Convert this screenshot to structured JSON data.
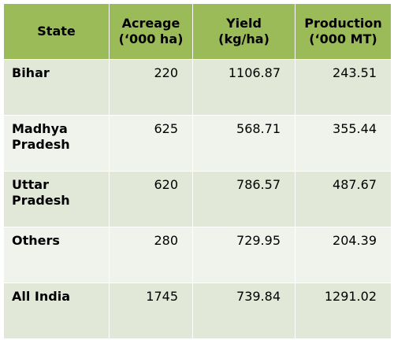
{
  "table": {
    "headers": {
      "state": "State",
      "acreage_line1": "Acreage",
      "acreage_line2": "(‘000 ha)",
      "yield_line1": "Yield",
      "yield_line2": "(kg/ha)",
      "production_line1": "Production",
      "production_line2": "(‘000 MT)"
    },
    "rows": [
      {
        "state_line1": "Bihar",
        "state_line2": "",
        "acreage": "220",
        "yield": "1106.87",
        "production": "243.51"
      },
      {
        "state_line1": "Madhya",
        "state_line2": "Pradesh",
        "acreage": "625",
        "yield": "568.71",
        "production": "355.44"
      },
      {
        "state_line1": "Uttar",
        "state_line2": "Pradesh",
        "acreage": "620",
        "yield": "786.57",
        "production": "487.67"
      },
      {
        "state_line1": "Others",
        "state_line2": "",
        "acreage": "280",
        "yield": "729.95",
        "production": "204.39"
      },
      {
        "state_line1": "All India",
        "state_line2": "",
        "acreage": "1745",
        "yield": "739.84",
        "production": "1291.02"
      }
    ]
  },
  "colors": {
    "header_bg": "#9bbb59",
    "row_odd_bg": "#e2e8d8",
    "row_even_bg": "#f0f3ec"
  }
}
